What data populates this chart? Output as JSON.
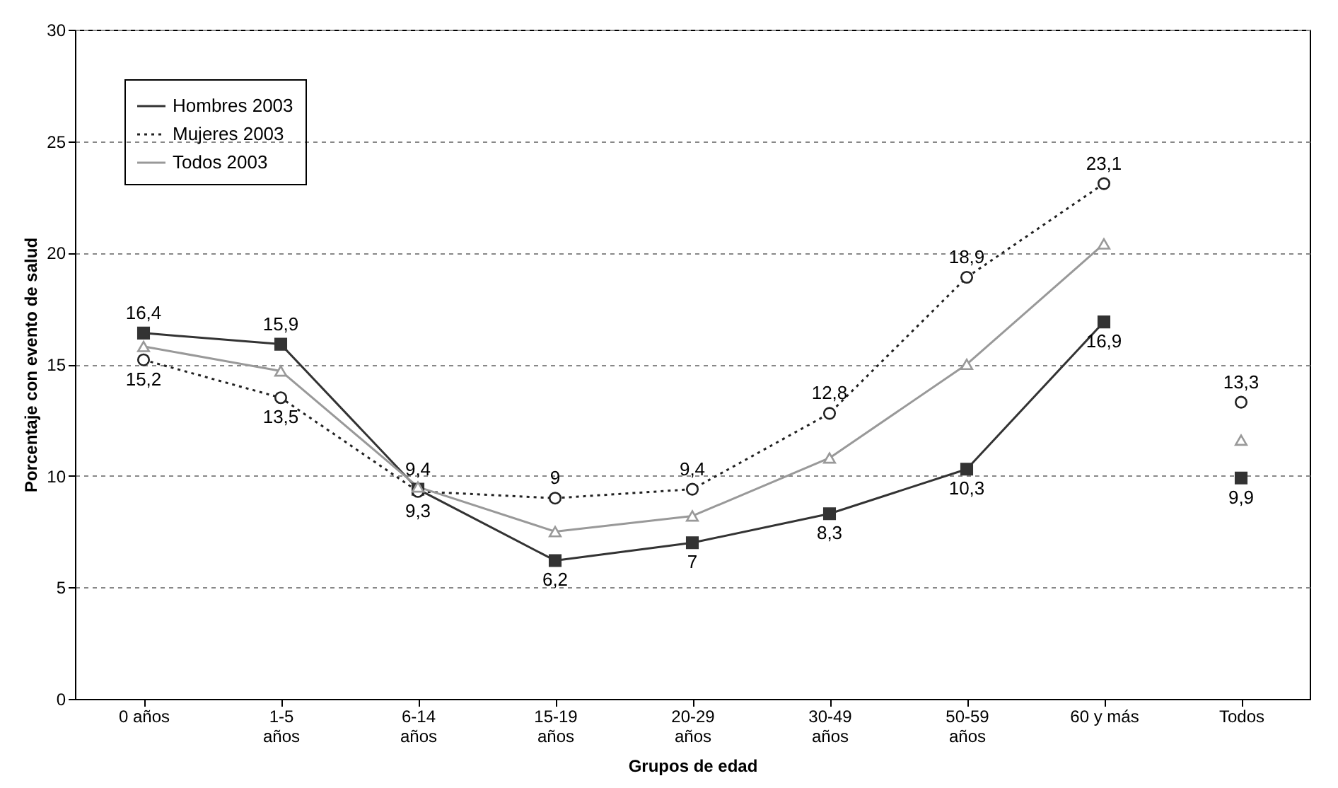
{
  "chart_data": {
    "type": "line",
    "xlabel": "Grupos de edad",
    "ylabel": "Porcentaje con evento de salud",
    "categories": [
      "0 años",
      "1-5 años",
      "6-14 años",
      "15-19 años",
      "20-29 años",
      "30-49 años",
      "50-59 años",
      "60 y más",
      "Todos"
    ],
    "ylim": [
      0,
      30
    ],
    "yticks": [
      0,
      5,
      10,
      15,
      20,
      25,
      30
    ],
    "grid": "y",
    "legend": "top left",
    "series": [
      {
        "name": "Hombres 2003",
        "color": "#333333",
        "marker": "square",
        "line_style": "solid",
        "values": [
          16.4,
          15.9,
          9.4,
          6.2,
          7,
          8.3,
          10.3,
          16.9,
          null
        ],
        "value_labels": [
          "16,4",
          "15,9",
          "9,4",
          "6,2",
          "7",
          "8,3",
          "10,3",
          "16,9",
          null
        ]
      },
      {
        "name": "Mujeres 2003",
        "color": "#222222",
        "marker": "circle",
        "line_style": "dotted",
        "values": [
          15.2,
          13.5,
          9.3,
          9,
          9.4,
          12.8,
          18.9,
          23.1,
          null
        ],
        "value_labels": [
          "15,2",
          "13,5",
          "9,3",
          "9",
          "9,4",
          "12,8",
          "18,9",
          "23,1",
          null
        ]
      },
      {
        "name": "Todos 2003",
        "color": "#999999",
        "marker": "triangle",
        "line_style": "solid",
        "values": [
          15.8,
          14.7,
          9.5,
          7.5,
          8.2,
          10.8,
          15.0,
          20.4,
          null
        ]
      },
      {
        "type": "scatter",
        "color": "#333333",
        "marker": "square",
        "x": [
          "Todos"
        ],
        "values": [
          9.9
        ],
        "value_labels": [
          "9,9"
        ]
      },
      {
        "type": "scatter",
        "color": "#222222",
        "marker": "circle",
        "x": [
          "Todos"
        ],
        "values": [
          13.3
        ],
        "value_labels": [
          "13,3"
        ]
      },
      {
        "type": "scatter",
        "color": "#999999",
        "marker": "triangle",
        "x": [
          "Todos"
        ],
        "values": [
          11.6
        ]
      }
    ]
  }
}
